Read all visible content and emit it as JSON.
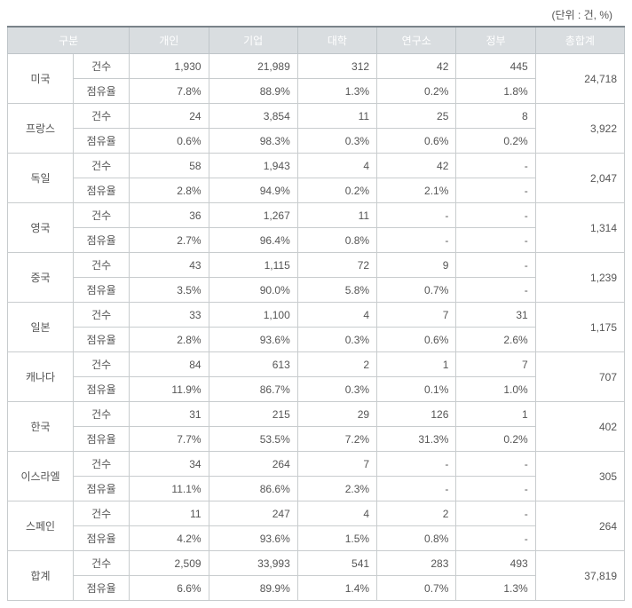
{
  "unit_label": "(단위 : 건, %)",
  "headers": {
    "group": "구분",
    "individual": "개인",
    "company": "기업",
    "university": "대학",
    "institute": "연구소",
    "government": "정부",
    "total": "총합계"
  },
  "metrics": {
    "count": "건수",
    "share": "점유율"
  },
  "rows": [
    {
      "country": "미국",
      "count": {
        "individual": "1,930",
        "company": "21,989",
        "university": "312",
        "institute": "42",
        "government": "445"
      },
      "share": {
        "individual": "7.8%",
        "company": "88.9%",
        "university": "1.3%",
        "institute": "0.2%",
        "government": "1.8%"
      },
      "total": "24,718"
    },
    {
      "country": "프랑스",
      "count": {
        "individual": "24",
        "company": "3,854",
        "university": "11",
        "institute": "25",
        "government": "8"
      },
      "share": {
        "individual": "0.6%",
        "company": "98.3%",
        "university": "0.3%",
        "institute": "0.6%",
        "government": "0.2%"
      },
      "total": "3,922"
    },
    {
      "country": "독일",
      "count": {
        "individual": "58",
        "company": "1,943",
        "university": "4",
        "institute": "42",
        "government": "-"
      },
      "share": {
        "individual": "2.8%",
        "company": "94.9%",
        "university": "0.2%",
        "institute": "2.1%",
        "government": "-"
      },
      "total": "2,047"
    },
    {
      "country": "영국",
      "count": {
        "individual": "36",
        "company": "1,267",
        "university": "11",
        "institute": "-",
        "government": "-"
      },
      "share": {
        "individual": "2.7%",
        "company": "96.4%",
        "university": "0.8%",
        "institute": "-",
        "government": "-"
      },
      "total": "1,314"
    },
    {
      "country": "중국",
      "count": {
        "individual": "43",
        "company": "1,115",
        "university": "72",
        "institute": "9",
        "government": "-"
      },
      "share": {
        "individual": "3.5%",
        "company": "90.0%",
        "university": "5.8%",
        "institute": "0.7%",
        "government": "-"
      },
      "total": "1,239"
    },
    {
      "country": "일본",
      "count": {
        "individual": "33",
        "company": "1,100",
        "university": "4",
        "institute": "7",
        "government": "31"
      },
      "share": {
        "individual": "2.8%",
        "company": "93.6%",
        "university": "0.3%",
        "institute": "0.6%",
        "government": "2.6%"
      },
      "total": "1,175"
    },
    {
      "country": "캐나다",
      "count": {
        "individual": "84",
        "company": "613",
        "university": "2",
        "institute": "1",
        "government": "7"
      },
      "share": {
        "individual": "11.9%",
        "company": "86.7%",
        "university": "0.3%",
        "institute": "0.1%",
        "government": "1.0%"
      },
      "total": "707"
    },
    {
      "country": "한국",
      "count": {
        "individual": "31",
        "company": "215",
        "university": "29",
        "institute": "126",
        "government": "1"
      },
      "share": {
        "individual": "7.7%",
        "company": "53.5%",
        "university": "7.2%",
        "institute": "31.3%",
        "government": "0.2%"
      },
      "total": "402"
    },
    {
      "country": "이스라엘",
      "count": {
        "individual": "34",
        "company": "264",
        "university": "7",
        "institute": "-",
        "government": "-"
      },
      "share": {
        "individual": "11.1%",
        "company": "86.6%",
        "university": "2.3%",
        "institute": "-",
        "government": "-"
      },
      "total": "305"
    },
    {
      "country": "스페인",
      "count": {
        "individual": "11",
        "company": "247",
        "university": "4",
        "institute": "2",
        "government": "-"
      },
      "share": {
        "individual": "4.2%",
        "company": "93.6%",
        "university": "1.5%",
        "institute": "0.8%",
        "government": "-"
      },
      "total": "264"
    },
    {
      "country": "합계",
      "count": {
        "individual": "2,509",
        "company": "33,993",
        "university": "541",
        "institute": "283",
        "government": "493"
      },
      "share": {
        "individual": "6.6%",
        "company": "89.9%",
        "university": "1.4%",
        "institute": "0.7%",
        "government": "1.3%"
      },
      "total": "37,819"
    }
  ],
  "col_widths": {
    "country": "68px",
    "metric": "58px",
    "individual": "82px",
    "company": "92px",
    "university": "82px",
    "institute": "82px",
    "government": "82px",
    "total": "92px"
  },
  "colors": {
    "header_bg": "#d9dde0",
    "header_text": "#ffffff",
    "border": "#c8ccce",
    "top_border": "#7a8389",
    "text": "#555555"
  }
}
